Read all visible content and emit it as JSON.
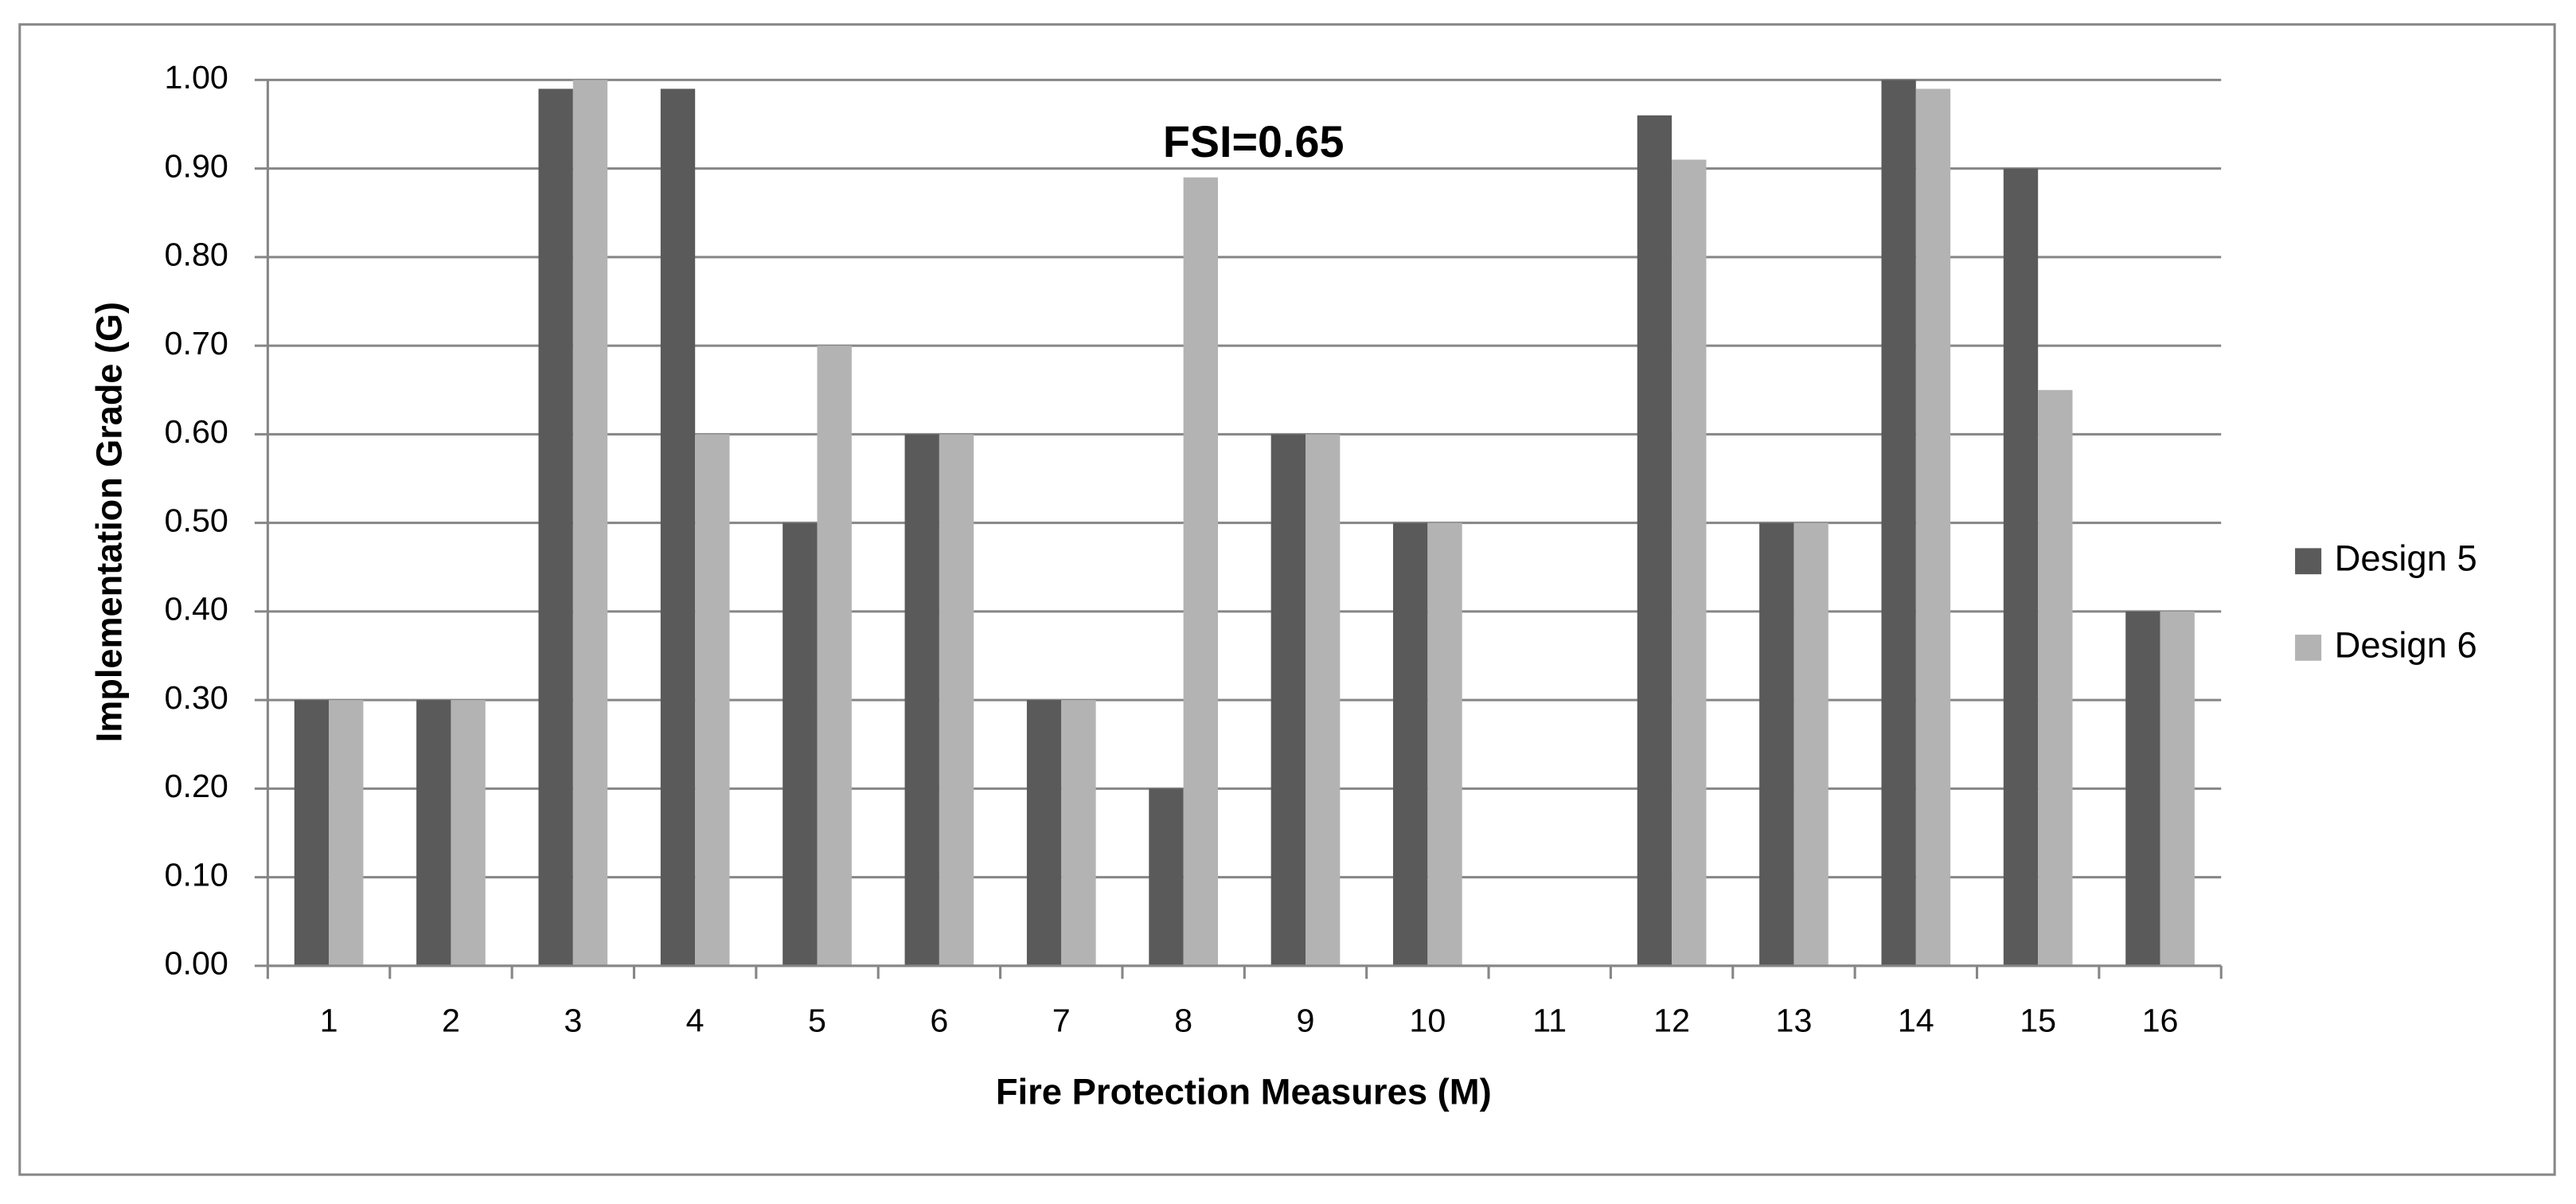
{
  "chart_data": {
    "type": "bar",
    "x_label": "Fire Protection Measures (M)",
    "y_label": "Implementation Grade (G)",
    "annotation": "FSI=0.65",
    "categories": [
      "1",
      "2",
      "3",
      "4",
      "5",
      "6",
      "7",
      "8",
      "9",
      "10",
      "11",
      "12",
      "13",
      "14",
      "15",
      "16"
    ],
    "series": [
      {
        "name": "Design 5",
        "color": "#5a5a5a",
        "values": [
          0.3,
          0.3,
          0.99,
          0.99,
          0.5,
          0.6,
          0.3,
          0.2,
          0.6,
          0.5,
          0,
          0.96,
          0.5,
          1.0,
          0.9,
          0.4
        ]
      },
      {
        "name": "Design 6",
        "color": "#b3b3b3",
        "values": [
          0.3,
          0.3,
          1.0,
          0.6,
          0.7,
          0.6,
          0.3,
          0.89,
          0.6,
          0.5,
          0,
          0.91,
          0.5,
          0.99,
          0.65,
          0.4
        ]
      }
    ],
    "ylim": [
      0,
      1
    ],
    "yticks": [
      {
        "value": 0,
        "label": "0.00"
      },
      {
        "value": 0.1,
        "label": "0.10"
      },
      {
        "value": 0.2,
        "label": "0.20"
      },
      {
        "value": 0.3,
        "label": "0.30"
      },
      {
        "value": 0.4,
        "label": "0.40"
      },
      {
        "value": 0.5,
        "label": "0.50"
      },
      {
        "value": 0.6,
        "label": "0.60"
      },
      {
        "value": 0.7,
        "label": "0.70"
      },
      {
        "value": 0.8,
        "label": "0.80"
      },
      {
        "value": 0.9,
        "label": "0.90"
      },
      {
        "value": 1,
        "label": "1.00"
      }
    ],
    "grid": true,
    "legend": "right"
  }
}
